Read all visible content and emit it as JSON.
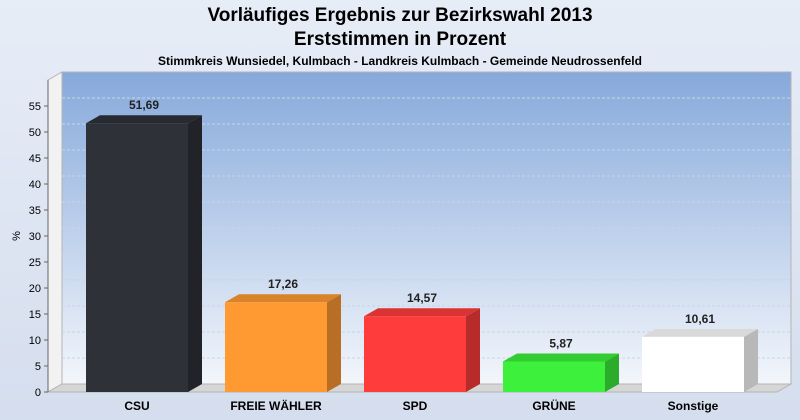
{
  "chart_data": {
    "type": "bar",
    "title": "Vorläufiges Ergebnis zur Bezirkswahl 2013",
    "subtitle": "Erststimmen in Prozent",
    "caption": "Stimmkreis Wunsiedel, Kulmbach - Landkreis Kulmbach - Gemeinde Neudrossenfeld",
    "ylabel": "%",
    "ylim": [
      0,
      57
    ],
    "yticks": [
      0,
      5,
      10,
      15,
      20,
      25,
      30,
      35,
      40,
      45,
      50,
      55
    ],
    "grid": true,
    "categories": [
      "CSU",
      "FREIE WÄHLER",
      "SPD",
      "GRÜNE",
      "Sonstige"
    ],
    "values": [
      51.69,
      17.26,
      14.57,
      5.87,
      10.61
    ],
    "value_labels": [
      "51,69",
      "17,26",
      "14,57",
      "5,87",
      "10,61"
    ],
    "colors": [
      "#2e3138",
      "#ff9a33",
      "#ff3c3c",
      "#3cf03c",
      "#ffffff"
    ]
  }
}
